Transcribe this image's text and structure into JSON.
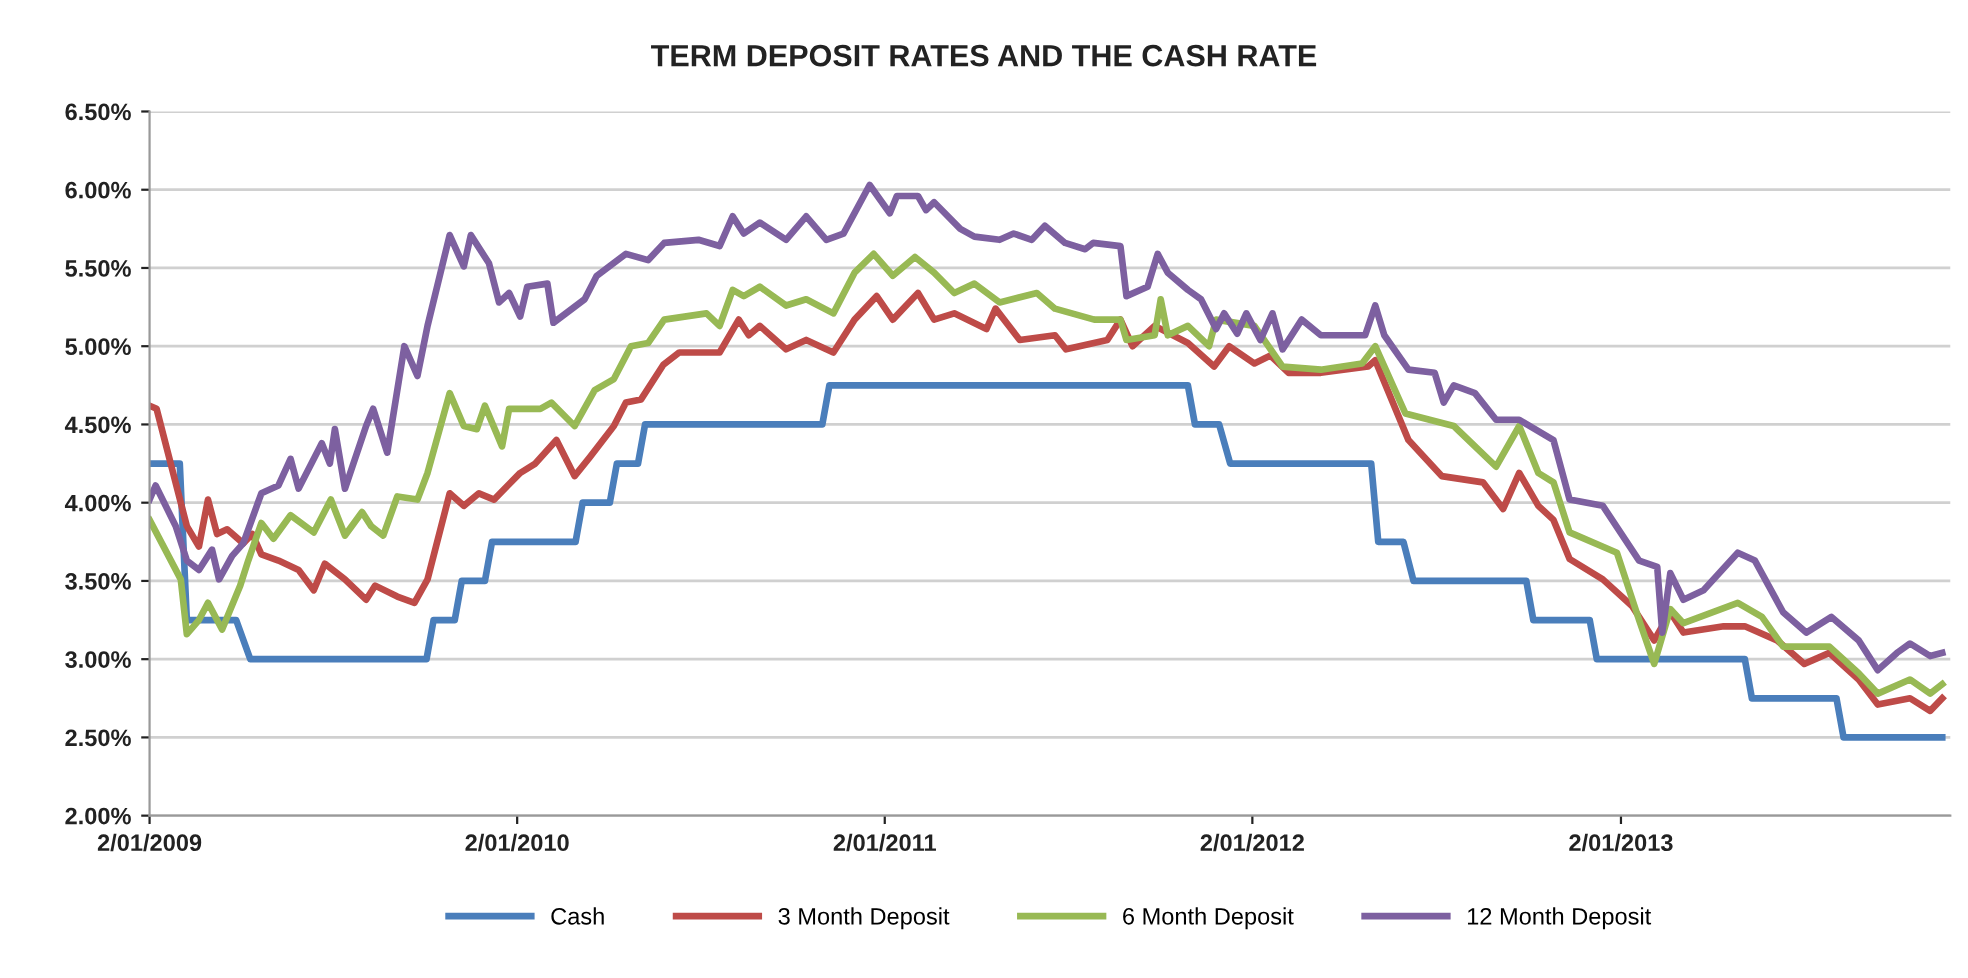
{
  "chart_data": {
    "type": "line",
    "title": "TERM DEPOSIT RATES AND THE CASH RATE",
    "xlim": [
      "2009-01-02",
      "2013-11-25"
    ],
    "xticks": [
      {
        "value": "2009-01-02",
        "label": "2/01/2009"
      },
      {
        "value": "2010-01-02",
        "label": "2/01/2010"
      },
      {
        "value": "2011-01-02",
        "label": "2/01/2011"
      },
      {
        "value": "2012-01-02",
        "label": "2/01/2012"
      },
      {
        "value": "2013-01-02",
        "label": "2/01/2013"
      }
    ],
    "ylim": [
      2.0,
      6.5
    ],
    "yticks": [
      {
        "value": 2.0,
        "label": "2.00%"
      },
      {
        "value": 2.5,
        "label": "2.50%"
      },
      {
        "value": 3.0,
        "label": "3.00%"
      },
      {
        "value": 3.5,
        "label": "3.50%"
      },
      {
        "value": 4.0,
        "label": "4.00%"
      },
      {
        "value": 4.5,
        "label": "4.50%"
      },
      {
        "value": 5.0,
        "label": "5.00%"
      },
      {
        "value": 5.5,
        "label": "5.50%"
      },
      {
        "value": 6.0,
        "label": "6.00%"
      },
      {
        "value": 6.5,
        "label": "6.50%"
      }
    ],
    "grid": "y",
    "legend": "bottom",
    "marker": "none",
    "line_style": "solid",
    "series": [
      {
        "name": "Cash",
        "color": "#4a7ebb",
        "x": [
          "2009-01-02",
          "2009-02-01",
          "2009-02-08",
          "2009-03-29",
          "2009-04-12",
          "2009-10-04",
          "2009-10-11",
          "2009-11-01",
          "2009-11-08",
          "2009-12-01",
          "2009-12-08",
          "2010-03-01",
          "2010-03-08",
          "2010-04-04",
          "2010-04-11",
          "2010-05-02",
          "2010-05-09",
          "2010-11-01",
          "2010-11-08",
          "2011-10-30",
          "2011-11-06",
          "2011-11-30",
          "2011-12-11",
          "2012-04-29",
          "2012-05-06",
          "2012-05-31",
          "2012-06-10",
          "2012-09-30",
          "2012-10-07",
          "2012-12-02",
          "2012-12-09",
          "2013-05-05",
          "2013-05-12",
          "2013-08-04",
          "2013-08-11",
          "2013-11-17"
        ],
        "values": [
          4.25,
          4.25,
          3.25,
          3.25,
          3.0,
          3.0,
          3.25,
          3.25,
          3.5,
          3.5,
          3.75,
          3.75,
          4.0,
          4.0,
          4.25,
          4.25,
          4.5,
          4.5,
          4.75,
          4.75,
          4.5,
          4.5,
          4.25,
          4.25,
          3.75,
          3.75,
          3.5,
          3.5,
          3.25,
          3.25,
          3.0,
          3.0,
          2.75,
          2.75,
          2.5,
          2.5
        ]
      },
      {
        "name": "3 Month Deposit",
        "color": "#be4b48",
        "x": [
          "2009-01-02",
          "2009-01-09",
          "2009-02-08",
          "2009-02-20",
          "2009-03-01",
          "2009-03-10",
          "2009-03-20",
          "2009-04-05",
          "2009-04-14",
          "2009-04-23",
          "2009-05-10",
          "2009-05-30",
          "2009-06-14",
          "2009-06-25",
          "2009-07-15",
          "2009-08-05",
          "2009-08-14",
          "2009-09-05",
          "2009-09-22",
          "2009-10-05",
          "2009-10-27",
          "2009-11-10",
          "2009-11-25",
          "2009-12-10",
          "2010-01-05",
          "2010-01-20",
          "2010-02-10",
          "2010-02-28",
          "2010-03-15",
          "2010-04-08",
          "2010-04-20",
          "2010-05-05",
          "2010-05-27",
          "2010-06-12",
          "2010-07-22",
          "2010-08-10",
          "2010-08-20",
          "2010-08-31",
          "2010-09-26",
          "2010-10-16",
          "2010-11-12",
          "2010-12-03",
          "2010-12-25",
          "2011-01-10",
          "2011-02-04",
          "2011-02-20",
          "2011-03-12",
          "2011-04-13",
          "2011-04-22",
          "2011-05-16",
          "2011-06-20",
          "2011-07-01",
          "2011-08-11",
          "2011-08-24",
          "2011-09-05",
          "2011-09-27",
          "2011-10-30",
          "2011-11-25",
          "2011-12-10",
          "2012-01-04",
          "2012-01-20",
          "2012-02-07",
          "2012-03-10",
          "2012-04-26",
          "2012-05-03",
          "2012-06-05",
          "2012-07-08",
          "2012-08-18",
          "2012-09-07",
          "2012-09-23",
          "2012-10-12",
          "2012-10-27",
          "2012-11-12",
          "2012-12-15",
          "2013-01-13",
          "2013-02-04",
          "2013-02-20",
          "2013-03-05",
          "2013-04-14",
          "2013-05-05",
          "2013-06-06",
          "2013-07-03",
          "2013-07-28",
          "2013-08-26",
          "2013-09-14",
          "2013-10-16",
          "2013-11-05",
          "2013-11-17"
        ],
        "values": [
          4.62,
          4.6,
          3.85,
          3.72,
          4.02,
          3.8,
          3.83,
          3.74,
          3.8,
          3.67,
          3.63,
          3.57,
          3.44,
          3.61,
          3.51,
          3.38,
          3.47,
          3.4,
          3.36,
          3.51,
          4.06,
          3.98,
          4.06,
          4.02,
          4.19,
          4.25,
          4.4,
          4.17,
          4.29,
          4.49,
          4.64,
          4.66,
          4.88,
          4.96,
          4.96,
          5.17,
          5.07,
          5.13,
          4.98,
          5.04,
          4.96,
          5.17,
          5.32,
          5.17,
          5.34,
          5.17,
          5.21,
          5.11,
          5.24,
          5.04,
          5.07,
          4.98,
          5.04,
          5.17,
          5.0,
          5.13,
          5.02,
          4.87,
          5.0,
          4.89,
          4.94,
          4.83,
          4.83,
          4.87,
          4.91,
          4.4,
          4.17,
          4.13,
          3.96,
          4.19,
          3.98,
          3.89,
          3.64,
          3.51,
          3.34,
          3.12,
          3.3,
          3.17,
          3.21,
          3.21,
          3.12,
          2.97,
          3.04,
          2.87,
          2.71,
          2.75,
          2.67,
          2.75
        ]
      },
      {
        "name": "6 Month Deposit",
        "color": "#98b954",
        "x": [
          "2009-01-02",
          "2009-02-02",
          "2009-02-08",
          "2009-02-20",
          "2009-03-01",
          "2009-03-15",
          "2009-04-02",
          "2009-04-10",
          "2009-04-23",
          "2009-05-05",
          "2009-05-22",
          "2009-06-14",
          "2009-07-01",
          "2009-07-15",
          "2009-08-01",
          "2009-08-10",
          "2009-08-22",
          "2009-09-05",
          "2009-09-25",
          "2009-10-05",
          "2009-10-27",
          "2009-11-10",
          "2009-11-23",
          "2009-12-01",
          "2009-12-18",
          "2009-12-25",
          "2010-01-25",
          "2010-02-05",
          "2010-02-28",
          "2010-03-20",
          "2010-04-08",
          "2010-04-25",
          "2010-05-12",
          "2010-05-28",
          "2010-07-09",
          "2010-07-22",
          "2010-08-04",
          "2010-08-15",
          "2010-08-31",
          "2010-09-26",
          "2010-10-16",
          "2010-11-12",
          "2010-12-03",
          "2010-12-22",
          "2011-01-10",
          "2011-02-01",
          "2011-02-20",
          "2011-03-12",
          "2011-04-01",
          "2011-04-26",
          "2011-06-02",
          "2011-06-20",
          "2011-07-29",
          "2011-08-24",
          "2011-08-30",
          "2011-09-27",
          "2011-10-03",
          "2011-10-10",
          "2011-10-30",
          "2011-11-20",
          "2011-11-27",
          "2012-01-04",
          "2012-02-01",
          "2012-03-10",
          "2012-04-20",
          "2012-05-03",
          "2012-06-02",
          "2012-07-20",
          "2012-08-31",
          "2012-09-23",
          "2012-10-12",
          "2012-10-27",
          "2012-11-12",
          "2012-12-29",
          "2013-01-20",
          "2013-02-04",
          "2013-02-20",
          "2013-03-05",
          "2013-04-28",
          "2013-05-22",
          "2013-06-12",
          "2013-07-28",
          "2013-08-26",
          "2013-09-14",
          "2013-10-16",
          "2013-11-05",
          "2013-11-17"
        ],
        "values": [
          3.89,
          3.51,
          3.16,
          3.25,
          3.36,
          3.19,
          3.47,
          3.63,
          3.87,
          3.77,
          3.92,
          3.81,
          4.02,
          3.79,
          3.94,
          3.85,
          3.79,
          4.04,
          4.02,
          4.19,
          4.7,
          4.49,
          4.47,
          4.62,
          4.36,
          4.6,
          4.6,
          4.64,
          4.49,
          4.72,
          4.79,
          5.0,
          5.02,
          5.17,
          5.21,
          5.13,
          5.36,
          5.32,
          5.38,
          5.26,
          5.3,
          5.21,
          5.47,
          5.59,
          5.45,
          5.57,
          5.47,
          5.34,
          5.4,
          5.28,
          5.34,
          5.24,
          5.17,
          5.17,
          5.04,
          5.07,
          5.3,
          5.07,
          5.13,
          5.0,
          5.17,
          5.13,
          4.87,
          4.85,
          4.89,
          5.0,
          4.57,
          4.49,
          4.23,
          4.49,
          4.19,
          4.13,
          3.81,
          3.68,
          3.25,
          2.97,
          3.32,
          3.23,
          3.36,
          3.27,
          3.08,
          3.08,
          2.91,
          2.78,
          2.87,
          2.78,
          2.84
        ]
      },
      {
        "name": "12 Month Deposit",
        "color": "#7d60a0",
        "x": [
          "2009-01-02",
          "2009-01-08",
          "2009-01-28",
          "2009-02-08",
          "2009-02-20",
          "2009-03-05",
          "2009-03-12",
          "2009-03-25",
          "2009-04-05",
          "2009-04-23",
          "2009-05-10",
          "2009-05-22",
          "2009-05-30",
          "2009-06-22",
          "2009-06-30",
          "2009-07-05",
          "2009-07-15",
          "2009-08-05",
          "2009-08-12",
          "2009-08-26",
          "2009-09-12",
          "2009-09-25",
          "2009-10-05",
          "2009-10-27",
          "2009-11-10",
          "2009-11-17",
          "2009-12-05",
          "2009-12-15",
          "2009-12-25",
          "2010-01-05",
          "2010-01-12",
          "2010-02-01",
          "2010-02-07",
          "2010-03-10",
          "2010-03-22",
          "2010-04-20",
          "2010-05-12",
          "2010-05-28",
          "2010-07-01",
          "2010-07-22",
          "2010-08-04",
          "2010-08-15",
          "2010-08-31",
          "2010-09-26",
          "2010-10-16",
          "2010-11-05",
          "2010-11-22",
          "2010-12-18",
          "2011-01-07",
          "2011-01-14",
          "2011-02-04",
          "2011-02-12",
          "2011-02-20",
          "2011-03-18",
          "2011-04-01",
          "2011-04-26",
          "2011-05-10",
          "2011-05-28",
          "2011-06-10",
          "2011-06-30",
          "2011-07-20",
          "2011-07-28",
          "2011-08-24",
          "2011-08-30",
          "2011-09-20",
          "2011-09-30",
          "2011-10-10",
          "2011-10-30",
          "2011-11-12",
          "2011-11-27",
          "2011-12-05",
          "2011-12-18",
          "2011-12-27",
          "2012-01-10",
          "2012-01-22",
          "2012-02-01",
          "2012-02-20",
          "2012-03-10",
          "2012-03-22",
          "2012-04-23",
          "2012-05-03",
          "2012-05-12",
          "2012-06-05",
          "2012-07-01",
          "2012-07-10",
          "2012-07-20",
          "2012-08-10",
          "2012-08-31",
          "2012-09-23",
          "2012-10-27",
          "2012-11-12",
          "2012-12-15",
          "2013-01-20",
          "2013-02-07",
          "2013-02-12",
          "2013-02-20",
          "2013-03-05",
          "2013-03-25",
          "2013-04-28",
          "2013-05-15",
          "2013-06-12",
          "2013-07-05",
          "2013-07-30",
          "2013-08-26",
          "2013-09-14",
          "2013-10-03",
          "2013-10-16",
          "2013-11-05",
          "2013-11-17"
        ],
        "values": [
          4.02,
          4.11,
          3.85,
          3.63,
          3.57,
          3.7,
          3.51,
          3.66,
          3.74,
          4.06,
          4.11,
          4.28,
          4.09,
          4.38,
          4.25,
          4.47,
          4.09,
          4.49,
          4.6,
          4.32,
          5.0,
          4.81,
          5.13,
          5.71,
          5.51,
          5.71,
          5.53,
          5.28,
          5.34,
          5.19,
          5.38,
          5.4,
          5.15,
          5.3,
          5.45,
          5.59,
          5.55,
          5.66,
          5.68,
          5.64,
          5.83,
          5.72,
          5.79,
          5.68,
          5.83,
          5.68,
          5.72,
          6.03,
          5.85,
          5.96,
          5.96,
          5.87,
          5.92,
          5.75,
          5.7,
          5.68,
          5.72,
          5.68,
          5.77,
          5.66,
          5.62,
          5.66,
          5.64,
          5.32,
          5.38,
          5.59,
          5.47,
          5.36,
          5.3,
          5.11,
          5.21,
          5.08,
          5.21,
          5.04,
          5.21,
          4.98,
          5.17,
          5.07,
          5.07,
          5.07,
          5.26,
          5.07,
          4.85,
          4.83,
          4.64,
          4.75,
          4.7,
          4.53,
          4.53,
          4.4,
          4.02,
          3.98,
          3.63,
          3.59,
          3.17,
          3.55,
          3.38,
          3.44,
          3.68,
          3.63,
          3.3,
          3.17,
          3.27,
          3.12,
          2.93,
          3.04,
          3.1,
          3.02,
          3.04
        ]
      }
    ]
  }
}
